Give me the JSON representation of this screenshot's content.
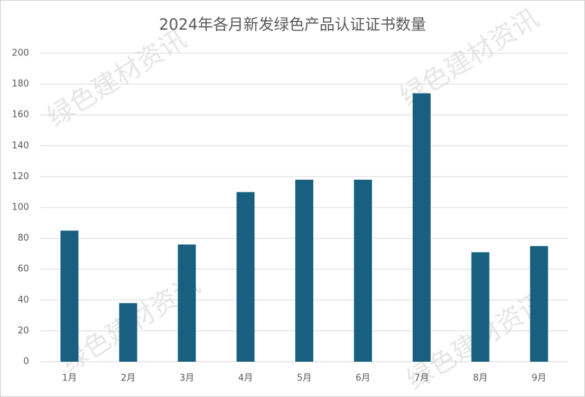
{
  "chart_data": {
    "type": "bar",
    "title": "2024年各月新发绿色产品认证证书数量",
    "watermark": "绿色建材资讯",
    "categories": [
      "1月",
      "2月",
      "3月",
      "4月",
      "5月",
      "6月",
      "7月",
      "8月",
      "9月"
    ],
    "values": [
      85,
      38,
      76,
      110,
      118,
      118,
      174,
      71,
      75
    ],
    "color": "#185f80",
    "ylim": [
      0,
      200
    ],
    "yticks": [
      0,
      20,
      40,
      60,
      80,
      100,
      120,
      140,
      160,
      180,
      200
    ],
    "grid": true
  }
}
